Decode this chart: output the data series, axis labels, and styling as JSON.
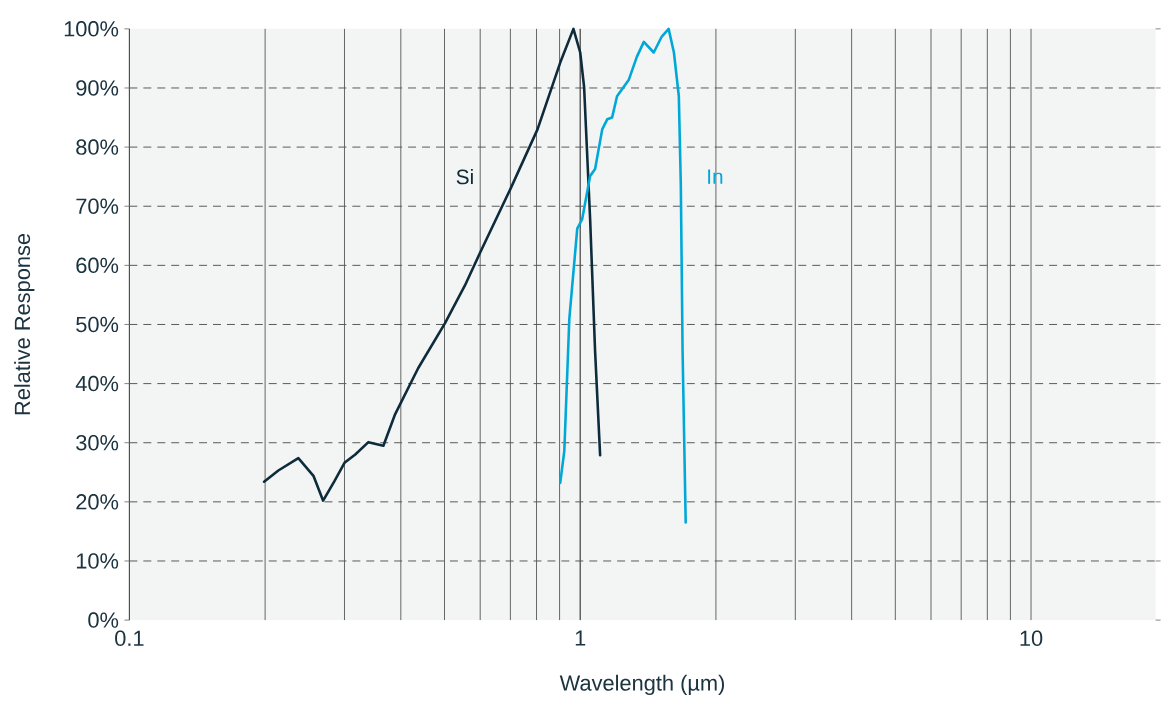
{
  "chart_data": {
    "type": "line",
    "xlabel": "Wavelength (µm)",
    "ylabel": "Relative Response",
    "log": "x",
    "grid": true,
    "marker": "none",
    "line_style": "solid",
    "xlim": [
      0.1,
      18.9
    ],
    "xticks": [
      0.1,
      1,
      10
    ],
    "ylim": [
      0,
      100
    ],
    "yticks": [
      {
        "value": 0,
        "label": "0%"
      },
      {
        "value": 10,
        "label": "10%"
      },
      {
        "value": 20,
        "label": "20%"
      },
      {
        "value": 30,
        "label": "30%"
      },
      {
        "value": 40,
        "label": "40%"
      },
      {
        "value": 50,
        "label": "50%"
      },
      {
        "value": 60,
        "label": "60%"
      },
      {
        "value": 70,
        "label": "70%"
      },
      {
        "value": 80,
        "label": "80%"
      },
      {
        "value": 90,
        "label": "90%"
      },
      {
        "value": 100,
        "label": "100%"
      }
    ],
    "series": [
      {
        "name": "Si",
        "color": "#0d2b3a",
        "x": [
          0.199,
          0.214,
          0.237,
          0.256,
          0.269,
          0.285,
          0.3,
          0.317,
          0.339,
          0.366,
          0.388,
          0.437,
          0.501,
          0.555,
          0.601,
          0.7,
          0.804,
          0.903,
          0.966,
          1.0,
          1.02,
          1.052,
          1.079,
          1.107
        ],
        "values": [
          23.4,
          25.3,
          27.4,
          24.4,
          20.2,
          23.5,
          26.6,
          28.0,
          30.1,
          29.5,
          34.7,
          42.6,
          50.2,
          56.6,
          62.3,
          72.9,
          83.0,
          94.3,
          100,
          96.0,
          90.2,
          67.8,
          45.5,
          27.9
        ]
      },
      {
        "name": "In",
        "color": "#00a8d8",
        "x": [
          0.903,
          0.922,
          0.946,
          0.985,
          1.01,
          1.052,
          1.079,
          1.119,
          1.148,
          1.177,
          1.207,
          1.282,
          1.336,
          1.384,
          1.456,
          1.517,
          1.571,
          1.614,
          1.655,
          1.672,
          1.687,
          1.714
        ],
        "values": [
          23.2,
          28.6,
          51.0,
          66.2,
          67.8,
          75.1,
          76.3,
          83.0,
          84.7,
          85.0,
          88.6,
          91.4,
          95.3,
          97.8,
          96.0,
          98.7,
          100,
          96.0,
          88.6,
          73.4,
          45.5,
          16.5
        ]
      }
    ]
  }
}
